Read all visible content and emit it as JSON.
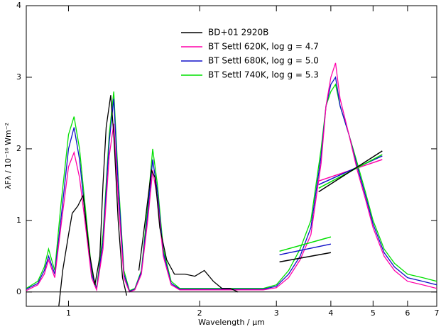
{
  "chart_data": {
    "type": "line",
    "xlabel": "Wavelength / μm",
    "ylabel": "λFλ / 10⁻¹⁶ Wm⁻²",
    "xlim": [
      0.8,
      7
    ],
    "xticks": [
      1,
      2,
      3,
      4,
      5,
      6,
      7
    ],
    "xscale": "log",
    "ylim": [
      -0.2,
      4
    ],
    "yticks": [
      0,
      1,
      2,
      3,
      4
    ],
    "legend": "top",
    "series": [
      {
        "name": "BD+01 2920B",
        "color": "#000000",
        "x": [
          0.95,
          0.97,
          1.0,
          1.02,
          1.05,
          1.08,
          1.1,
          1.12,
          1.15,
          1.18,
          1.2,
          1.22,
          1.25,
          1.27,
          1.3,
          1.33,
          1.36,
          1.4,
          1.45,
          1.5,
          1.55,
          1.58,
          1.62,
          1.68,
          1.75,
          1.85,
          1.95,
          2.05,
          2.15,
          2.25,
          2.35,
          2.45
        ],
        "values": [
          -0.2,
          0.3,
          0.8,
          1.1,
          1.2,
          1.35,
          0.9,
          0.5,
          0.1,
          0.5,
          1.5,
          2.3,
          2.75,
          2.2,
          1.0,
          0.2,
          -0.05,
          null,
          0.3,
          1.0,
          1.7,
          1.6,
          0.9,
          0.45,
          0.25,
          0.25,
          0.22,
          0.3,
          0.15,
          0.05,
          0.05,
          0.0
        ]
      },
      {
        "name": "BT Settl 620K, log g = 4.7",
        "color": "#ff00aa",
        "x": [
          0.8,
          0.85,
          0.88,
          0.9,
          0.93,
          0.96,
          1.0,
          1.03,
          1.06,
          1.1,
          1.13,
          1.16,
          1.2,
          1.24,
          1.27,
          1.3,
          1.34,
          1.38,
          1.42,
          1.47,
          1.52,
          1.56,
          1.6,
          1.65,
          1.72,
          1.8,
          1.9,
          2.0,
          2.2,
          2.5,
          2.8,
          3.0,
          3.2,
          3.4,
          3.6,
          3.8,
          3.9,
          4.0,
          4.1,
          4.2,
          4.4,
          4.6,
          4.8,
          5.0,
          5.3,
          5.6,
          6.0,
          6.5,
          7.0
        ],
        "values": [
          0.02,
          0.1,
          0.25,
          0.45,
          0.2,
          0.9,
          1.75,
          1.95,
          1.6,
          0.8,
          0.2,
          0.03,
          0.6,
          1.9,
          2.35,
          1.3,
          0.2,
          0.0,
          0.03,
          0.25,
          1.0,
          1.7,
          1.3,
          0.5,
          0.1,
          0.03,
          0.03,
          0.03,
          0.03,
          0.03,
          0.03,
          0.06,
          0.2,
          0.45,
          0.8,
          1.8,
          2.6,
          3.0,
          3.2,
          2.7,
          2.2,
          1.7,
          1.3,
          0.9,
          0.5,
          0.3,
          0.15,
          0.1,
          0.05
        ]
      },
      {
        "name": "BT Settl 680K, log g = 5.0",
        "color": "#1010c8",
        "x": [
          0.8,
          0.85,
          0.88,
          0.9,
          0.93,
          0.96,
          1.0,
          1.03,
          1.06,
          1.1,
          1.13,
          1.16,
          1.2,
          1.24,
          1.27,
          1.3,
          1.34,
          1.38,
          1.42,
          1.47,
          1.52,
          1.56,
          1.6,
          1.65,
          1.72,
          1.8,
          1.9,
          2.0,
          2.2,
          2.5,
          2.8,
          3.0,
          3.2,
          3.4,
          3.6,
          3.8,
          3.9,
          4.0,
          4.1,
          4.2,
          4.4,
          4.6,
          4.8,
          5.0,
          5.3,
          5.6,
          6.0,
          6.5,
          7.0
        ],
        "values": [
          0.04,
          0.12,
          0.3,
          0.5,
          0.25,
          1.0,
          2.0,
          2.3,
          1.85,
          0.9,
          0.25,
          0.04,
          0.7,
          2.1,
          2.7,
          1.5,
          0.25,
          0.01,
          0.04,
          0.28,
          1.1,
          1.85,
          1.4,
          0.55,
          0.12,
          0.04,
          0.04,
          0.04,
          0.04,
          0.04,
          0.04,
          0.08,
          0.25,
          0.5,
          0.9,
          1.9,
          2.6,
          2.9,
          3.0,
          2.6,
          2.2,
          1.75,
          1.35,
          0.95,
          0.55,
          0.35,
          0.2,
          0.15,
          0.1
        ]
      },
      {
        "name": "BT Settl 740K, log g = 5.3",
        "color": "#00e000",
        "x": [
          0.8,
          0.85,
          0.88,
          0.9,
          0.93,
          0.96,
          1.0,
          1.03,
          1.06,
          1.1,
          1.13,
          1.16,
          1.2,
          1.24,
          1.27,
          1.3,
          1.34,
          1.38,
          1.42,
          1.47,
          1.52,
          1.56,
          1.6,
          1.65,
          1.72,
          1.8,
          1.9,
          2.0,
          2.2,
          2.5,
          2.8,
          3.0,
          3.2,
          3.4,
          3.6,
          3.8,
          3.9,
          4.0,
          4.1,
          4.2,
          4.4,
          4.6,
          4.8,
          5.0,
          5.3,
          5.6,
          6.0,
          6.5,
          7.0
        ],
        "values": [
          0.05,
          0.15,
          0.35,
          0.6,
          0.3,
          1.2,
          2.2,
          2.45,
          2.0,
          1.0,
          0.3,
          0.05,
          0.8,
          2.2,
          2.8,
          1.6,
          0.3,
          0.02,
          0.05,
          0.3,
          1.2,
          2.0,
          1.5,
          0.6,
          0.15,
          0.05,
          0.05,
          0.05,
          0.05,
          0.05,
          0.05,
          0.1,
          0.3,
          0.6,
          1.0,
          2.0,
          2.6,
          2.8,
          2.9,
          2.6,
          2.2,
          1.8,
          1.4,
          1.0,
          0.6,
          0.4,
          0.25,
          0.2,
          0.15
        ]
      }
    ],
    "segments": [
      {
        "color": "#000000",
        "x": [
          3.05,
          4.0
        ],
        "values": [
          0.42,
          0.55
        ]
      },
      {
        "color": "#1010c8",
        "x": [
          3.05,
          4.0
        ],
        "values": [
          0.52,
          0.67
        ]
      },
      {
        "color": "#00e000",
        "x": [
          3.05,
          4.0
        ],
        "values": [
          0.57,
          0.77
        ]
      },
      {
        "color": "#ff00aa",
        "x": [
          3.75,
          5.25
        ],
        "values": [
          1.55,
          1.85
        ]
      },
      {
        "color": "#1010c8",
        "x": [
          3.75,
          5.25
        ],
        "values": [
          1.5,
          1.9
        ]
      },
      {
        "color": "#00e000",
        "x": [
          3.75,
          5.25
        ],
        "values": [
          1.45,
          1.92
        ]
      },
      {
        "color": "#000000",
        "x": [
          3.75,
          5.25
        ],
        "values": [
          1.4,
          1.97
        ]
      }
    ]
  }
}
